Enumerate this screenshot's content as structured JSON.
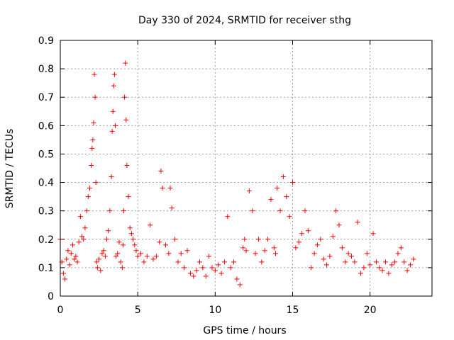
{
  "chart_data": {
    "type": "scatter",
    "title": "Day 330 of 2024, SRMTID for receiver sthg",
    "xlabel": "GPS time / hours",
    "ylabel": "SRMTID / TECUs",
    "xlim": [
      0,
      24
    ],
    "ylim": [
      0,
      0.9
    ],
    "xticks": [
      0,
      5,
      10,
      15,
      20
    ],
    "xtick_labels": [
      "0",
      "5",
      "10",
      "15",
      "20"
    ],
    "yticks": [
      0,
      0.1,
      0.2,
      0.3,
      0.4,
      0.5,
      0.6,
      0.7,
      0.8,
      0.9
    ],
    "ytick_labels": [
      "0",
      "0.1",
      "0.2",
      "0.3",
      "0.4",
      "0.5",
      "0.6",
      "0.7",
      "0.8",
      "0.9"
    ],
    "grid": true,
    "marker": "+",
    "color": "#ff0000",
    "series": [
      {
        "name": "SRMTID",
        "x": [
          0.0,
          0.1,
          0.2,
          0.3,
          0.4,
          0.5,
          0.6,
          0.7,
          0.8,
          0.9,
          1.0,
          1.1,
          1.2,
          1.3,
          1.4,
          1.5,
          1.6,
          1.7,
          1.8,
          1.9,
          2.0,
          2.05,
          2.1,
          2.15,
          2.2,
          2.25,
          2.3,
          2.35,
          2.4,
          2.5,
          2.6,
          2.7,
          2.8,
          2.9,
          3.0,
          3.1,
          3.2,
          3.3,
          3.35,
          3.4,
          3.45,
          3.5,
          3.55,
          3.6,
          3.7,
          3.8,
          3.9,
          4.0,
          4.05,
          4.1,
          4.15,
          4.2,
          4.25,
          4.3,
          4.4,
          4.5,
          4.6,
          4.7,
          4.8,
          4.9,
          5.0,
          5.2,
          5.4,
          5.6,
          5.8,
          6.0,
          6.2,
          6.4,
          6.5,
          6.6,
          6.8,
          7.0,
          7.1,
          7.2,
          7.4,
          7.6,
          7.8,
          8.0,
          8.2,
          8.4,
          8.6,
          8.8,
          9.0,
          9.2,
          9.4,
          9.6,
          9.8,
          10.0,
          10.2,
          10.4,
          10.6,
          10.8,
          11.0,
          11.2,
          11.4,
          11.6,
          11.8,
          11.9,
          12.0,
          12.2,
          12.4,
          12.6,
          12.8,
          13.0,
          13.2,
          13.4,
          13.6,
          13.8,
          13.9,
          14.0,
          14.2,
          14.4,
          14.6,
          14.8,
          15.0,
          15.2,
          15.4,
          15.6,
          15.8,
          16.0,
          16.2,
          16.4,
          16.6,
          16.8,
          17.0,
          17.2,
          17.4,
          17.6,
          17.8,
          18.0,
          18.2,
          18.4,
          18.6,
          18.8,
          19.0,
          19.2,
          19.4,
          19.6,
          19.8,
          20.0,
          20.2,
          20.4,
          20.6,
          20.8,
          21.0,
          21.2,
          21.4,
          21.6,
          21.8,
          22.0,
          22.2,
          22.4,
          22.6,
          22.8
        ],
        "y": [
          0.2,
          0.12,
          0.08,
          0.06,
          0.13,
          0.16,
          0.11,
          0.15,
          0.18,
          0.13,
          0.14,
          0.12,
          0.19,
          0.28,
          0.21,
          0.2,
          0.24,
          0.3,
          0.35,
          0.38,
          0.46,
          0.52,
          0.55,
          0.61,
          0.78,
          0.7,
          0.4,
          0.12,
          0.1,
          0.13,
          0.09,
          0.15,
          0.16,
          0.14,
          0.2,
          0.23,
          0.3,
          0.42,
          0.58,
          0.65,
          0.74,
          0.78,
          0.6,
          0.14,
          0.15,
          0.19,
          0.12,
          0.1,
          0.18,
          0.3,
          0.7,
          0.82,
          0.62,
          0.46,
          0.35,
          0.24,
          0.22,
          0.2,
          0.18,
          0.16,
          0.14,
          0.15,
          0.12,
          0.14,
          0.25,
          0.13,
          0.14,
          0.19,
          0.44,
          0.38,
          0.18,
          0.15,
          0.38,
          0.31,
          0.2,
          0.12,
          0.15,
          0.1,
          0.16,
          0.08,
          0.07,
          0.09,
          0.12,
          0.1,
          0.07,
          0.14,
          0.1,
          0.09,
          0.11,
          0.08,
          0.12,
          0.28,
          0.1,
          0.12,
          0.06,
          0.04,
          0.17,
          0.2,
          0.16,
          0.37,
          0.3,
          0.15,
          0.2,
          0.12,
          0.16,
          0.2,
          0.34,
          0.17,
          0.15,
          0.38,
          0.3,
          0.42,
          0.35,
          0.28,
          0.4,
          0.17,
          0.19,
          0.22,
          0.3,
          0.23,
          0.1,
          0.15,
          0.18,
          0.2,
          0.13,
          0.11,
          0.14,
          0.21,
          0.3,
          0.25,
          0.17,
          0.12,
          0.15,
          0.14,
          0.12,
          0.26,
          0.08,
          0.1,
          0.15,
          0.11,
          0.22,
          0.12,
          0.1,
          0.09,
          0.12,
          0.08,
          0.11,
          0.12,
          0.15,
          0.17,
          0.12,
          0.09,
          0.11,
          0.13
        ]
      }
    ]
  }
}
